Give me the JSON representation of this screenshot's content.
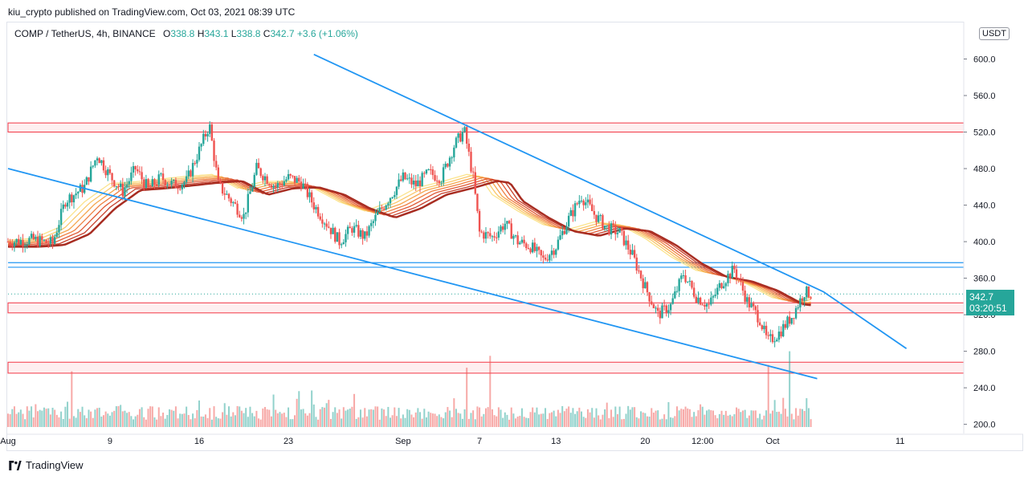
{
  "header": {
    "publish_line": "kiu_crypto published on TradingView.com, Oct 03, 2021 08:39 UTC"
  },
  "legend": {
    "symbol": "COMP / TetherUS, 4h, BINANCE",
    "o_label": "O",
    "o_value": "338.8",
    "h_label": "H",
    "h_value": "343.1",
    "l_label": "L",
    "l_value": "338.8",
    "c_label": "C",
    "c_value": "342.7",
    "change": "+3.6 (+1.06%)"
  },
  "currency": "USDT",
  "price_tag": {
    "price": "342.7",
    "countdown": "03:20:51"
  },
  "footer": {
    "brand": "TradingView"
  },
  "colors": {
    "up": "#26a69a",
    "down": "#ef5350",
    "trend": "#2196f3",
    "zone": "#f23645",
    "hline": "#2196f3"
  },
  "chart_data": {
    "type": "candlestick",
    "title": "COMP / TetherUS, 4h, BINANCE",
    "ylim": [
      190,
      640
    ],
    "y_ticks": [
      200,
      240,
      280,
      320,
      360,
      400,
      440,
      480,
      520,
      560,
      600
    ],
    "y_tick_labels": [
      "200.0",
      "240.0",
      "280.0",
      "320.0",
      "360.0",
      "400.0",
      "440.0",
      "480.0",
      "520.0",
      "560.0",
      "600.0"
    ],
    "x_range_days": [
      0,
      75
    ],
    "x_ticks": [
      {
        "day": 0,
        "label": "Aug"
      },
      {
        "day": 8,
        "label": "9"
      },
      {
        "day": 15,
        "label": "16"
      },
      {
        "day": 22,
        "label": "23"
      },
      {
        "day": 31,
        "label": "Sep"
      },
      {
        "day": 37,
        "label": "7"
      },
      {
        "day": 43,
        "label": "13"
      },
      {
        "day": 50,
        "label": "20"
      },
      {
        "day": 54.5,
        "label": "12:00"
      },
      {
        "day": 60,
        "label": "Oct"
      },
      {
        "day": 70,
        "label": "11"
      }
    ],
    "close_path": [
      [
        0,
        400
      ],
      [
        2,
        402
      ],
      [
        3.5,
        398
      ],
      [
        4.5,
        445
      ],
      [
        6,
        460
      ],
      [
        7,
        495
      ],
      [
        8,
        472
      ],
      [
        9,
        455
      ],
      [
        10,
        480
      ],
      [
        11,
        458
      ],
      [
        12,
        470
      ],
      [
        13,
        462
      ],
      [
        14,
        466
      ],
      [
        15,
        500
      ],
      [
        15.8,
        528
      ],
      [
        16.5,
        462
      ],
      [
        17.5,
        445
      ],
      [
        18.5,
        428
      ],
      [
        19.5,
        480
      ],
      [
        21,
        460
      ],
      [
        22,
        470
      ],
      [
        23,
        465
      ],
      [
        24,
        440
      ],
      [
        25,
        420
      ],
      [
        26,
        400
      ],
      [
        27,
        415
      ],
      [
        28,
        405
      ],
      [
        29,
        430
      ],
      [
        30,
        450
      ],
      [
        31,
        470
      ],
      [
        32,
        462
      ],
      [
        33,
        475
      ],
      [
        34,
        470
      ],
      [
        35,
        505
      ],
      [
        35.8,
        522
      ],
      [
        36.5,
        470
      ],
      [
        37,
        410
      ],
      [
        38,
        405
      ],
      [
        39,
        420
      ],
      [
        40,
        400
      ],
      [
        41,
        395
      ],
      [
        42,
        380
      ],
      [
        43,
        395
      ],
      [
        44,
        425
      ],
      [
        45,
        450
      ],
      [
        46,
        430
      ],
      [
        47,
        415
      ],
      [
        48,
        410
      ],
      [
        49,
        385
      ],
      [
        50,
        350
      ],
      [
        51,
        320
      ],
      [
        52,
        330
      ],
      [
        53,
        365
      ],
      [
        54,
        340
      ],
      [
        55,
        330
      ],
      [
        56,
        355
      ],
      [
        57,
        370
      ],
      [
        58,
        335
      ],
      [
        59,
        315
      ],
      [
        59.6,
        290
      ],
      [
        60.5,
        300
      ],
      [
        61.5,
        318
      ],
      [
        62.5,
        345
      ],
      [
        63,
        342.7
      ]
    ],
    "ema_path": [
      [
        0,
        398
      ],
      [
        2,
        400
      ],
      [
        4,
        412
      ],
      [
        6,
        440
      ],
      [
        8,
        460
      ],
      [
        10,
        462
      ],
      [
        12,
        465
      ],
      [
        14,
        468
      ],
      [
        16,
        470
      ],
      [
        18,
        455
      ],
      [
        20,
        462
      ],
      [
        22,
        463
      ],
      [
        24,
        455
      ],
      [
        26,
        440
      ],
      [
        28,
        430
      ],
      [
        30,
        440
      ],
      [
        32,
        455
      ],
      [
        34,
        462
      ],
      [
        36,
        470
      ],
      [
        37,
        468
      ],
      [
        38,
        448
      ],
      [
        40,
        430
      ],
      [
        42,
        415
      ],
      [
        44,
        410
      ],
      [
        46,
        418
      ],
      [
        48,
        415
      ],
      [
        50,
        400
      ],
      [
        52,
        380
      ],
      [
        54,
        365
      ],
      [
        56,
        360
      ],
      [
        58,
        350
      ],
      [
        60,
        335
      ],
      [
        62,
        332
      ],
      [
        63,
        336
      ]
    ],
    "volume_spikes": [
      [
        5,
        258
      ],
      [
        36,
        262
      ],
      [
        37.8,
        275
      ],
      [
        59.6,
        265
      ],
      [
        61.3,
        280
      ]
    ],
    "trendlines": [
      {
        "name": "upper-falling",
        "points": [
          [
            24,
            605
          ],
          [
            64,
            345
          ],
          [
            70.5,
            283
          ]
        ]
      },
      {
        "name": "lower-falling",
        "points": [
          [
            0,
            480
          ],
          [
            63.5,
            250
          ]
        ]
      }
    ],
    "horizontal_levels": [
      {
        "y": 377
      },
      {
        "y": 372
      }
    ],
    "resistance_zones": [
      {
        "y1": 520,
        "y2": 530
      },
      {
        "y1": 322,
        "y2": 333
      },
      {
        "y1": 256,
        "y2": 268
      }
    ],
    "last_price": 342.7
  }
}
